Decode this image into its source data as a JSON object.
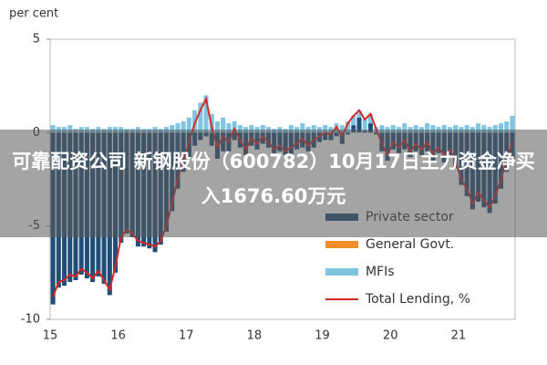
{
  "chart_data": {
    "type": "bar",
    "y_label": "per cent",
    "annotation": "可靠配资公司 新钢股份（600782）10月17日主力资金净买入1676.60万元",
    "ylim": [
      -10,
      5
    ],
    "yticks": [
      -10,
      -5,
      0,
      5
    ],
    "grid": false,
    "legend": "lower right",
    "categories": [
      "15",
      null,
      null,
      null,
      null,
      null,
      null,
      null,
      null,
      null,
      null,
      null,
      "16",
      null,
      null,
      null,
      null,
      null,
      null,
      null,
      null,
      null,
      null,
      null,
      "17",
      null,
      null,
      null,
      null,
      null,
      null,
      null,
      null,
      null,
      null,
      null,
      "18",
      null,
      null,
      null,
      null,
      null,
      null,
      null,
      null,
      null,
      null,
      null,
      "19",
      null,
      null,
      null,
      null,
      null,
      null,
      null,
      null,
      null,
      null,
      null,
      "20",
      null,
      null,
      null,
      null,
      null,
      null,
      null,
      null,
      null,
      null,
      null,
      "21",
      null,
      null,
      null,
      null,
      null,
      null,
      null,
      null,
      null
    ],
    "series": [
      {
        "name": "Private sector",
        "color": "#1f4e79",
        "values": [
          -9.2,
          -8.3,
          -8.2,
          -8.0,
          -7.9,
          -7.6,
          -7.8,
          -8.0,
          -7.7,
          -8.1,
          -8.7,
          -7.5,
          -5.9,
          -5.4,
          -5.6,
          -6.1,
          -6.1,
          -6.2,
          -6.4,
          -6.0,
          -5.3,
          -4.2,
          -3.0,
          -2.1,
          -1.3,
          -0.7,
          -0.4,
          -0.2,
          -0.7,
          -1.4,
          -1.0,
          -1.0,
          -0.4,
          -0.8,
          -1.2,
          -0.7,
          -0.9,
          -0.6,
          -0.8,
          -1.1,
          -1.0,
          -1.2,
          -1.2,
          -0.9,
          -0.8,
          -1.0,
          -0.8,
          -0.5,
          -0.4,
          -0.4,
          -0.2,
          -0.6,
          -0.1,
          0.4,
          0.8,
          0.1,
          0.5,
          -0.1,
          -1.0,
          -1.5,
          -0.9,
          -1.1,
          -0.9,
          -1.3,
          -1.0,
          -1.2,
          -1.0,
          -1.5,
          -1.1,
          -1.6,
          -1.2,
          -1.9,
          -2.8,
          -3.4,
          -4.1,
          -3.7,
          -4.0,
          -4.3,
          -3.8,
          -3.0,
          -2.1,
          -1.4
        ]
      },
      {
        "name": "General Govt.",
        "color": "#f28e2b",
        "values": [
          0,
          0,
          0,
          0,
          0,
          0,
          0,
          0,
          0,
          0,
          0,
          0,
          0,
          0,
          0,
          0,
          0,
          0,
          0,
          0,
          0,
          0,
          0,
          0,
          0,
          0,
          0,
          0,
          0,
          0,
          0,
          0,
          0,
          0,
          0,
          0,
          0,
          0,
          0,
          0,
          0,
          0,
          0,
          0,
          0,
          0,
          0,
          0,
          0,
          0,
          0,
          0,
          0,
          0,
          0,
          0,
          0,
          0,
          0,
          0,
          0,
          0,
          0,
          0,
          0,
          0,
          0,
          0,
          0,
          0,
          0,
          0,
          0,
          0,
          0,
          0,
          0,
          0,
          0,
          0,
          0,
          0
        ]
      },
      {
        "name": "MFIs",
        "color": "#7fc4e0",
        "values": [
          0.4,
          0.3,
          0.3,
          0.4,
          0.2,
          0.3,
          0.3,
          0.2,
          0.3,
          0.2,
          0.3,
          0.3,
          0.3,
          0.2,
          0.2,
          0.3,
          0.2,
          0.2,
          0.3,
          0.2,
          0.3,
          0.4,
          0.5,
          0.6,
          0.8,
          1.2,
          1.6,
          2.0,
          1.0,
          0.6,
          0.8,
          0.5,
          0.6,
          0.4,
          0.3,
          0.4,
          0.3,
          0.4,
          0.3,
          0.2,
          0.3,
          0.2,
          0.4,
          0.3,
          0.5,
          0.3,
          0.4,
          0.3,
          0.4,
          0.3,
          0.5,
          0.4,
          0.6,
          0.5,
          0.4,
          0.6,
          0.5,
          0.3,
          0.4,
          0.3,
          0.4,
          0.3,
          0.5,
          0.3,
          0.4,
          0.3,
          0.5,
          0.4,
          0.3,
          0.4,
          0.3,
          0.4,
          0.3,
          0.4,
          0.3,
          0.5,
          0.4,
          0.3,
          0.4,
          0.5,
          0.6,
          0.9
        ]
      },
      {
        "name": "Total Lending, %",
        "color": "#d62728",
        "type": "line",
        "values": [
          -8.8,
          -8.0,
          -7.9,
          -7.6,
          -7.7,
          -7.3,
          -7.5,
          -7.8,
          -7.4,
          -7.9,
          -8.4,
          -7.2,
          -5.6,
          -5.2,
          -5.4,
          -5.8,
          -5.9,
          -6.0,
          -6.1,
          -5.8,
          -5.0,
          -3.8,
          -2.5,
          -1.5,
          -0.5,
          0.5,
          1.2,
          1.8,
          0.3,
          -0.8,
          -0.2,
          -0.5,
          0.2,
          -0.4,
          -0.9,
          -0.3,
          -0.6,
          -0.2,
          -0.5,
          -0.9,
          -0.7,
          -1.0,
          -0.8,
          -0.6,
          -0.3,
          -0.7,
          -0.4,
          -0.2,
          0.0,
          -0.1,
          0.3,
          -0.2,
          0.5,
          0.9,
          1.2,
          0.7,
          1.0,
          0.2,
          -0.6,
          -1.2,
          -0.5,
          -0.8,
          -0.4,
          -1.0,
          -0.6,
          -0.9,
          -0.5,
          -1.1,
          -0.8,
          -1.2,
          -0.9,
          -1.5,
          -2.5,
          -3.0,
          -3.8,
          -3.2,
          -3.6,
          -4.0,
          -3.4,
          -2.5,
          -1.5,
          -0.5
        ]
      }
    ]
  }
}
